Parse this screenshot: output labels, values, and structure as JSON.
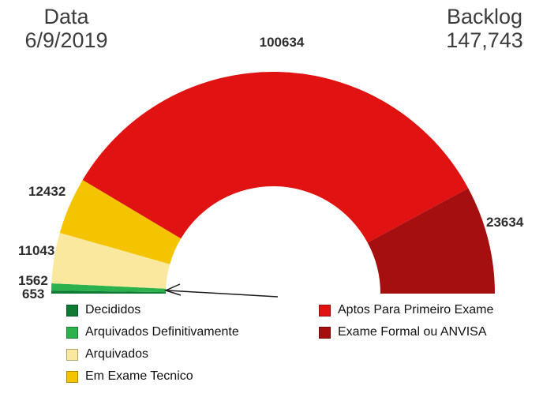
{
  "header": {
    "date_label": "Data",
    "date_value": "6/9/2019",
    "backlog_label": "Backlog",
    "backlog_value": "147,743"
  },
  "chart_data": {
    "type": "pie",
    "variant": "half-donut-gauge",
    "title": "",
    "legend_position": "bottom",
    "total_shown_as_backlog": "147,743",
    "segments": [
      {
        "label": "Decididos",
        "value": 653,
        "color": "#0E7A34"
      },
      {
        "label": "Arquivados Definitivamente",
        "value": 1562,
        "color": "#2BB24C"
      },
      {
        "label": "Arquivados",
        "value": 11043,
        "color": "#FAE89E"
      },
      {
        "label": "Em Exame Tecnico",
        "value": 12432,
        "color": "#F5C400"
      },
      {
        "label": "Aptos Para Primeiro Exame",
        "value": 100634,
        "color": "#E01212"
      },
      {
        "label": "Exame Formal ou ANVISA",
        "value": 23634,
        "color": "#A60F0F"
      }
    ]
  }
}
